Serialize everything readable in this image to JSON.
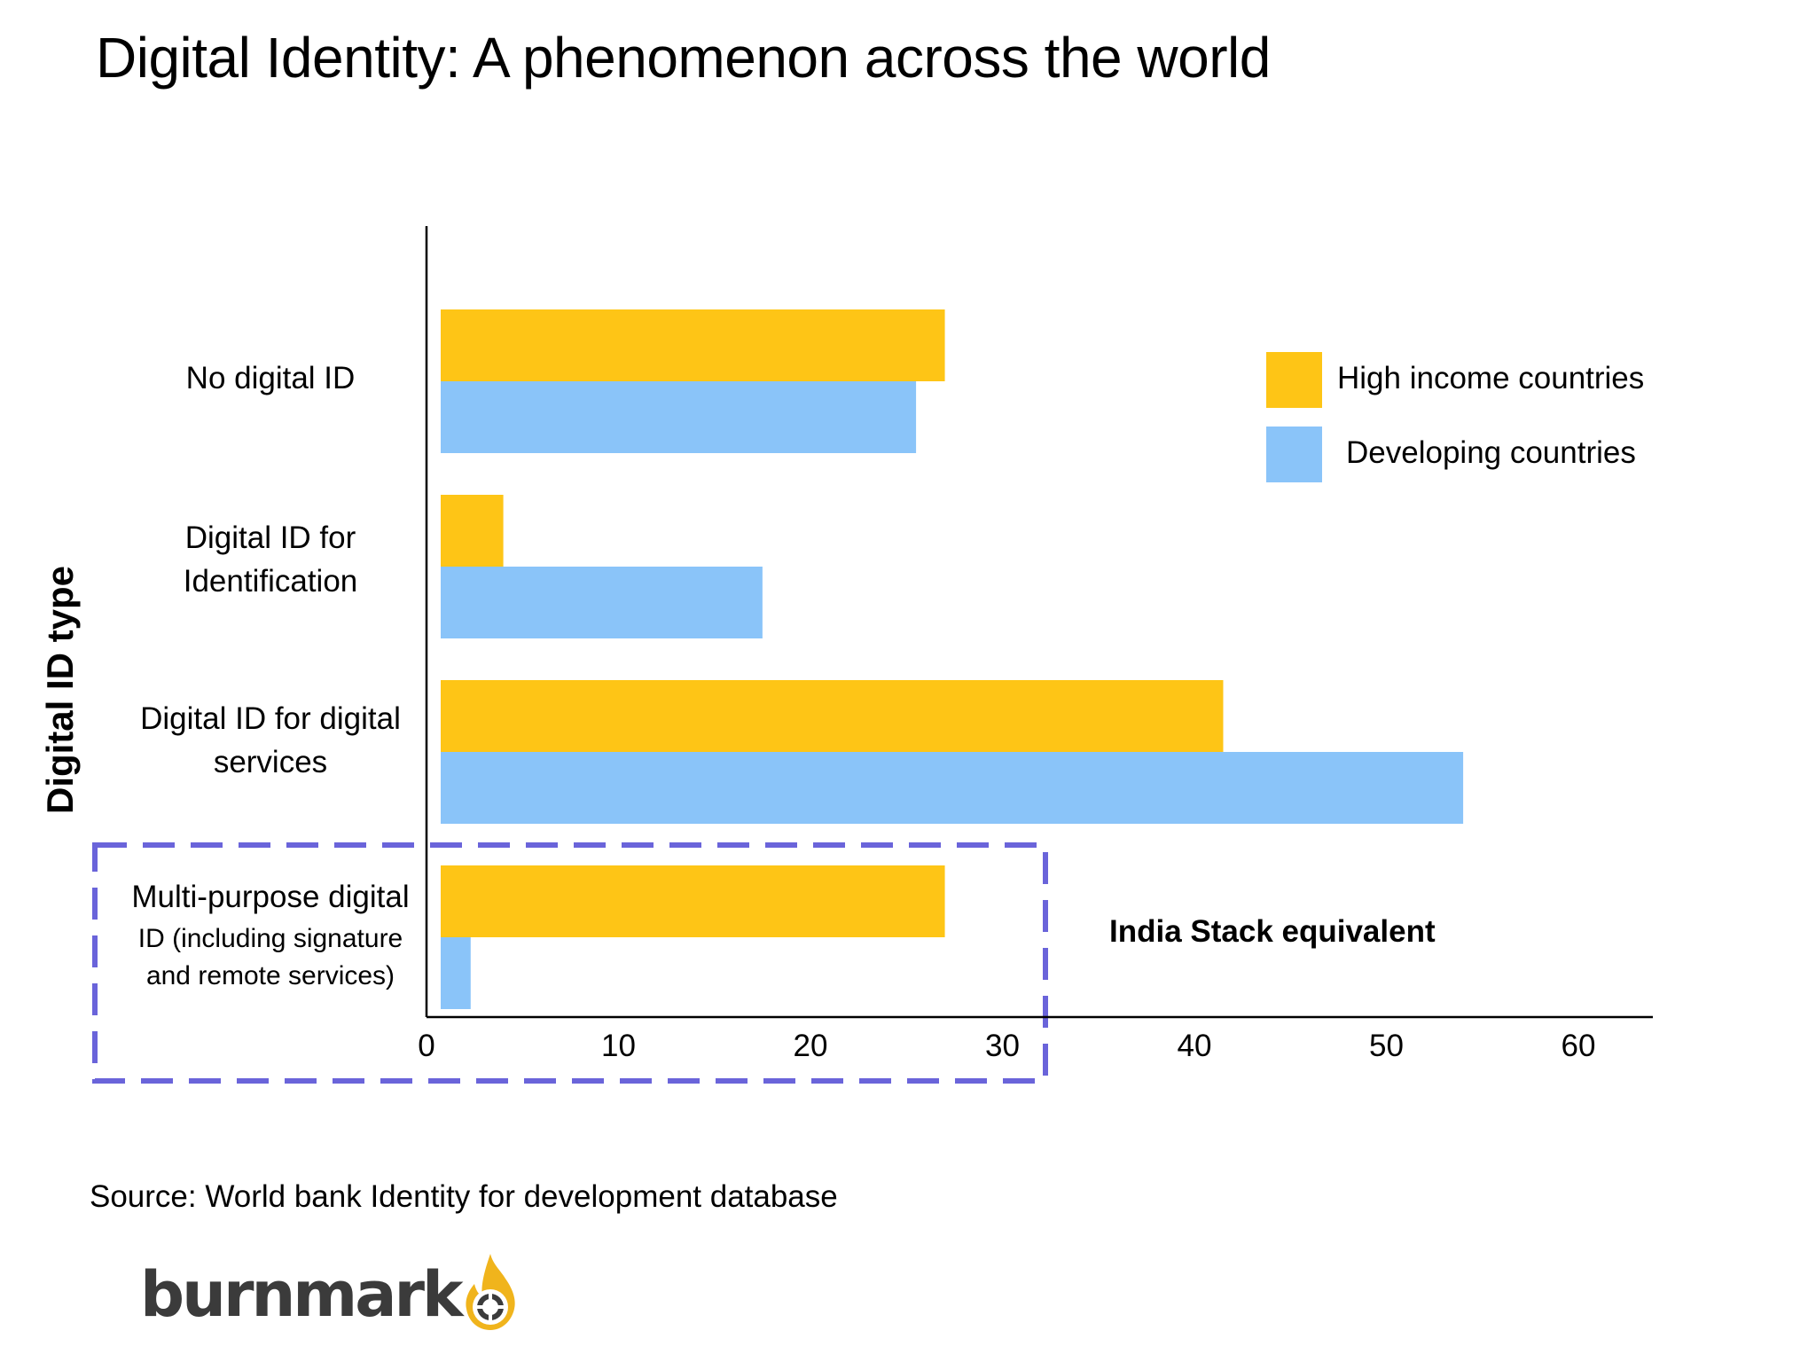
{
  "title": "Digital Identity: A phenomenon across the world",
  "source": "Source: World bank Identity for development database",
  "logo": {
    "text": "burnmark",
    "icon": "flame-target-icon",
    "color": "#F0B41C"
  },
  "colors": {
    "high_income": "#FEC516",
    "developing": "#8AC4F9",
    "highlight_box": "#6A64DA",
    "axis": "#000000"
  },
  "chart_data": {
    "type": "bar",
    "orientation": "horizontal",
    "title": "Digital Identity: A phenomenon across the world",
    "ylabel": "Digital ID type",
    "xlabel": "",
    "xlim": [
      0,
      63
    ],
    "xticks": [
      0,
      10,
      20,
      30,
      40,
      50,
      60
    ],
    "categories": [
      {
        "lines": [
          "No digital ID"
        ]
      },
      {
        "lines": [
          "Digital ID for",
          "Identification"
        ]
      },
      {
        "lines": [
          "Digital ID for digital",
          "services"
        ]
      },
      {
        "lines": [
          "Multi-purpose digital",
          "ID (including signature",
          "and remote services)"
        ]
      }
    ],
    "series": [
      {
        "name": "High income countries",
        "values": [
          27,
          4,
          41.5,
          27
        ]
      },
      {
        "name": "Developing countries",
        "values": [
          25.5,
          17.5,
          54,
          2.3
        ]
      }
    ],
    "legend_position": "top-right",
    "grid": false,
    "annotation": "India Stack equivalent"
  }
}
